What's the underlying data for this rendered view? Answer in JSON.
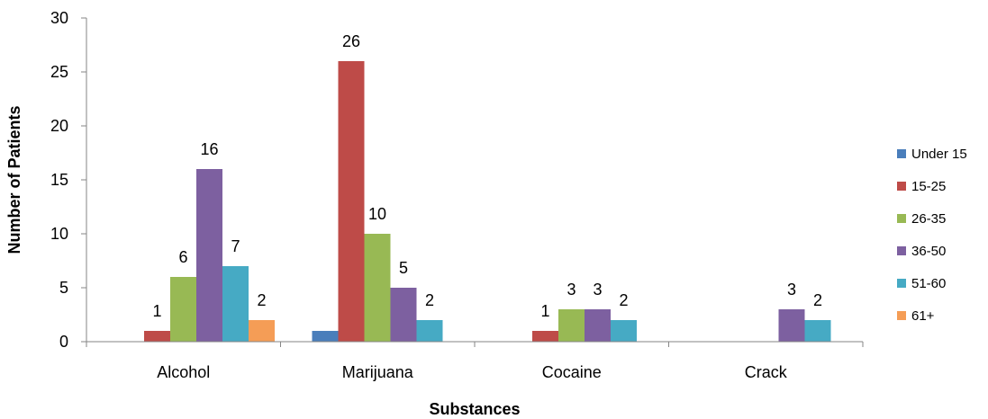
{
  "chart_data": {
    "type": "bar",
    "title": "",
    "xlabel": "Substances",
    "ylabel": "Number of Patients",
    "ylim": [
      0,
      30
    ],
    "yticks": [
      0,
      5,
      10,
      15,
      20,
      25,
      30
    ],
    "grid": false,
    "legend_position": "right",
    "categories": [
      "Alcohol",
      "Marijuana",
      "Cocaine",
      "Crack"
    ],
    "series": [
      {
        "name": "Under 15",
        "color": "#4a7ebb",
        "values": [
          0,
          1,
          0,
          0
        ]
      },
      {
        "name": "15-25",
        "color": "#be4b48",
        "values": [
          1,
          26,
          1,
          0
        ]
      },
      {
        "name": "26-35",
        "color": "#98b954",
        "values": [
          6,
          10,
          3,
          0
        ]
      },
      {
        "name": "36-50",
        "color": "#7d60a0",
        "values": [
          16,
          5,
          3,
          3
        ]
      },
      {
        "name": "51-60",
        "color": "#46aac4",
        "values": [
          7,
          2,
          2,
          2
        ]
      },
      {
        "name": "61+",
        "color": "#f59d56",
        "values": [
          2,
          0,
          0,
          0
        ]
      }
    ],
    "data_labels": [
      [
        "",
        "1",
        "6",
        "16",
        "7",
        "2"
      ],
      [
        "",
        "26",
        "10",
        "5",
        "2",
        ""
      ],
      [
        "",
        "1",
        "3",
        "3",
        "2",
        ""
      ],
      [
        "",
        "",
        "",
        "3",
        "2",
        ""
      ]
    ]
  }
}
